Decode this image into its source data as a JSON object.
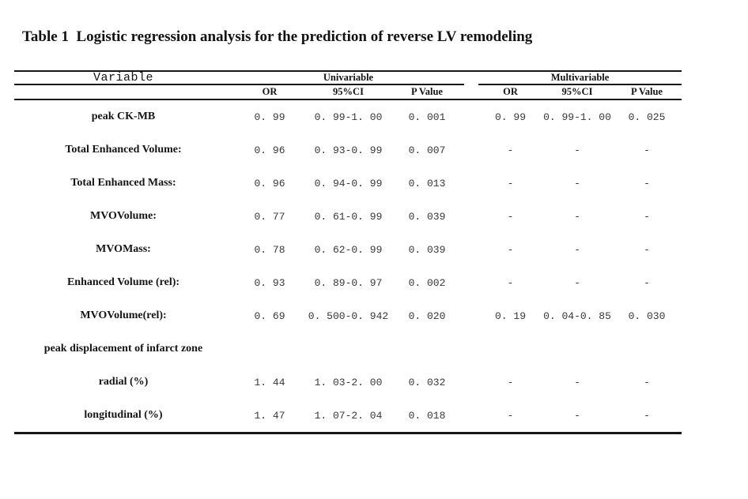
{
  "title": "Table 1  Logistic regression analysis for the prediction of reverse LV remodeling",
  "table": {
    "headers": {
      "variable": "Variable",
      "univariable": "Univariable",
      "multivariable": "Multivariable",
      "or": "OR",
      "ci": "95%CI",
      "p": "P Value"
    },
    "rows": [
      {
        "variable": "peak CK-MB",
        "u_or": "0. 99",
        "u_ci": "0. 99-1. 00",
        "u_p": "0. 001",
        "m_or": "0. 99",
        "m_ci": "0. 99-1. 00",
        "m_p": "0. 025"
      },
      {
        "variable": "Total Enhanced Volume:",
        "u_or": "0. 96",
        "u_ci": "0. 93-0. 99",
        "u_p": "0. 007",
        "m_or": "-",
        "m_ci": "-",
        "m_p": "-"
      },
      {
        "variable": "Total Enhanced Mass:",
        "u_or": "0. 96",
        "u_ci": "0. 94-0. 99",
        "u_p": "0. 013",
        "m_or": "-",
        "m_ci": "-",
        "m_p": "-"
      },
      {
        "variable": "MVOVolume:",
        "u_or": "0. 77",
        "u_ci": "0. 61-0. 99",
        "u_p": "0. 039",
        "m_or": "-",
        "m_ci": "-",
        "m_p": "-"
      },
      {
        "variable": "MVOMass:",
        "u_or": "0. 78",
        "u_ci": "0. 62-0. 99",
        "u_p": "0. 039",
        "m_or": "-",
        "m_ci": "-",
        "m_p": "-"
      },
      {
        "variable": "Enhanced Volume (rel):",
        "u_or": "0. 93",
        "u_ci": "0. 89-0. 97",
        "u_p": "0. 002",
        "m_or": "-",
        "m_ci": "-",
        "m_p": "-"
      },
      {
        "variable": "MVOVolume(rel):",
        "u_or": "0. 69",
        "u_ci": "0. 500-0. 942",
        "u_p": "0. 020",
        "m_or": "0. 19",
        "m_ci": "0. 04-0. 85",
        "m_p": "0. 030"
      },
      {
        "variable": "peak displacement of infarct zone",
        "u_or": "",
        "u_ci": "",
        "u_p": "",
        "m_or": "",
        "m_ci": "",
        "m_p": ""
      },
      {
        "variable": "radial (%)",
        "u_or": "1. 44",
        "u_ci": "1. 03-2. 00",
        "u_p": "0. 032",
        "m_or": "-",
        "m_ci": "-",
        "m_p": "-"
      },
      {
        "variable": "longitudinal (%)",
        "u_or": "1. 47",
        "u_ci": "1. 07-2. 04",
        "u_p": "0. 018",
        "m_or": "-",
        "m_ci": "-",
        "m_p": "-"
      }
    ]
  }
}
